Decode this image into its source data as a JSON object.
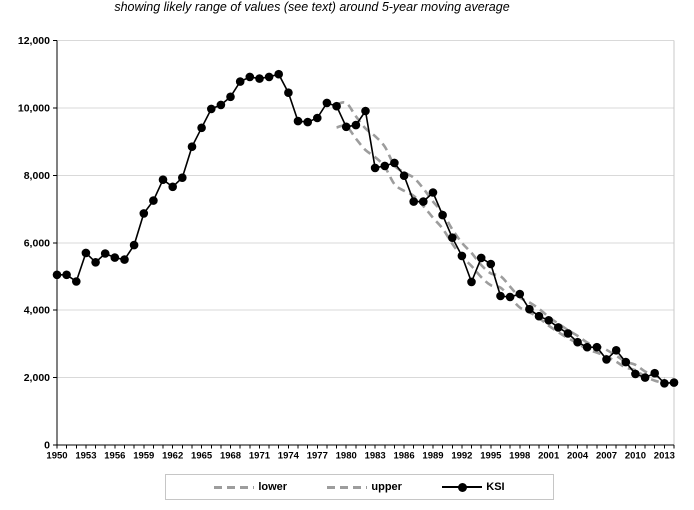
{
  "subtitle": "showing likely range of values (see text) around 5-year moving average",
  "legend": {
    "items": [
      {
        "label": "lower"
      },
      {
        "label": "upper"
      },
      {
        "label": "KSI"
      }
    ]
  },
  "colors": {
    "ksi": "#000000",
    "band": "#9d9d9d",
    "grid": "#d9d9d9",
    "plot_border": "#c9c9c9",
    "axis": "#000000",
    "legend_border": "#c6c6c6"
  },
  "chart_data": {
    "type": "line",
    "title": "",
    "subtitle": "showing likely range of values (see text) around 5-year moving average",
    "xlabel": "",
    "ylabel": "",
    "x_start": 1950,
    "x_end": 2014,
    "ylim": [
      0,
      12000
    ],
    "grid": "horizontal",
    "legend_position": "bottom",
    "yticks": [
      {
        "value": 0,
        "label": "0"
      },
      {
        "value": 2000,
        "label": "2,000"
      },
      {
        "value": 4000,
        "label": "4,000"
      },
      {
        "value": 6000,
        "label": "6,000"
      },
      {
        "value": 8000,
        "label": "8,000"
      },
      {
        "value": 10000,
        "label": "10,000"
      },
      {
        "value": 12000,
        "label": "12,000"
      }
    ],
    "xticks": [
      {
        "year": 1950,
        "label": "1950"
      },
      {
        "year": 1953,
        "label": "1953"
      },
      {
        "year": 1956,
        "label": "1956"
      },
      {
        "year": 1959,
        "label": "1959"
      },
      {
        "year": 1962,
        "label": "1962"
      },
      {
        "year": 1965,
        "label": "1965"
      },
      {
        "year": 1968,
        "label": "1968"
      },
      {
        "year": 1971,
        "label": "1971"
      },
      {
        "year": 1974,
        "label": "1974"
      },
      {
        "year": 1977,
        "label": "1977"
      },
      {
        "year": 1980,
        "label": "1980"
      },
      {
        "year": 1983,
        "label": "1983"
      },
      {
        "year": 1986,
        "label": "1986"
      },
      {
        "year": 1989,
        "label": "1989"
      },
      {
        "year": 1992,
        "label": "1992"
      },
      {
        "year": 1995,
        "label": "1995"
      },
      {
        "year": 1998,
        "label": "1998"
      },
      {
        "year": 2001,
        "label": "2001"
      },
      {
        "year": 2004,
        "label": "2004"
      },
      {
        "year": 2007,
        "label": "2007"
      },
      {
        "year": 2010,
        "label": "2010"
      },
      {
        "year": 2013,
        "label": "2013"
      }
    ],
    "series": [
      {
        "name": "lower",
        "style": "dashed",
        "color": "#9d9d9d",
        "x_start": 1979,
        "values": [
          9420,
          9460,
          9090,
          8750,
          8540,
          8250,
          7740,
          7540,
          7390,
          7090,
          6740,
          6420,
          5970,
          5590,
          5310,
          4980,
          4740,
          4670,
          4380,
          4080,
          3940,
          3770,
          3540,
          3350,
          3170,
          3020,
          2840,
          2740,
          2630,
          2470,
          2300,
          2220,
          2030,
          1910,
          1830
        ]
      },
      {
        "name": "upper",
        "style": "dashed",
        "color": "#9d9d9d",
        "x_start": 1979,
        "values": [
          10100,
          10150,
          9750,
          9390,
          9160,
          8850,
          8300,
          8090,
          7930,
          7610,
          7220,
          6890,
          6400,
          6000,
          5700,
          5340,
          5090,
          5010,
          4700,
          4380,
          4230,
          4040,
          3800,
          3600,
          3410,
          3240,
          3040,
          2940,
          2820,
          2650,
          2470,
          2380,
          2180,
          2050,
          1970
        ]
      },
      {
        "name": "KSI",
        "style": "line-marker",
        "color": "#000000",
        "x_start": 1950,
        "values": [
          5050,
          5050,
          4850,
          5700,
          5420,
          5680,
          5560,
          5500,
          5930,
          6870,
          7250,
          7870,
          7660,
          7930,
          8850,
          9410,
          9970,
          10090,
          10330,
          10780,
          10920,
          10870,
          10920,
          11000,
          10450,
          9610,
          9580,
          9700,
          10150,
          10050,
          9440,
          9490,
          9910,
          8220,
          8280,
          8370,
          7990,
          7220,
          7220,
          7490,
          6820,
          6150,
          5610,
          4840,
          5550,
          5370,
          4420,
          4390,
          4480,
          4030,
          3820,
          3700,
          3490,
          3310,
          3050,
          2900,
          2900,
          2540,
          2810,
          2460,
          2110,
          2000,
          2130,
          1830,
          1850
        ]
      }
    ]
  }
}
